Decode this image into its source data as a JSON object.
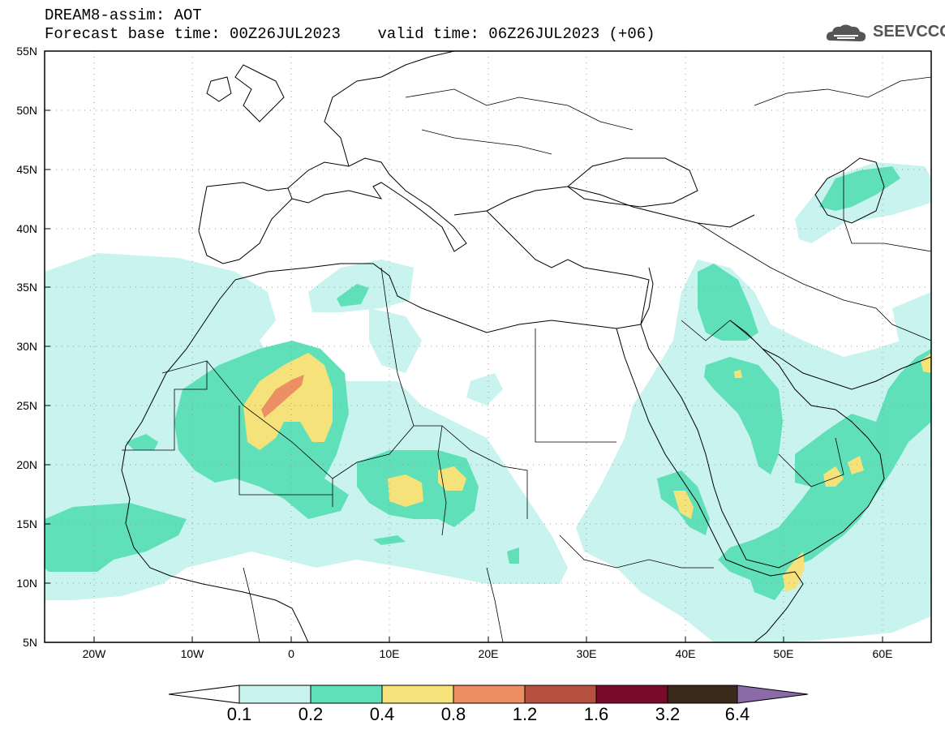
{
  "header": {
    "title_line1": "DREAM8-assim: AOT",
    "title_line2": "Forecast base time: 00Z26JUL2023    valid time: 06Z26JUL2023 (+06)",
    "logo_text": "SEEVCCC"
  },
  "axes": {
    "lat_labels": [
      "55N",
      "50N",
      "45N",
      "40N",
      "35N",
      "30N",
      "25N",
      "20N",
      "15N",
      "10N",
      "5N"
    ],
    "lon_labels": [
      "20W",
      "10W",
      "0",
      "10E",
      "20E",
      "30E",
      "40E",
      "50E",
      "60E"
    ]
  },
  "legend": {
    "labels": [
      "0.1",
      "0.2",
      "0.4",
      "0.8",
      "1.2",
      "1.6",
      "3.2",
      "6.4"
    ],
    "colors": [
      "#c8f3ee",
      "#5fe0b9",
      "#f6e27a",
      "#ec8f62",
      "#b8503f",
      "#7a0a2a",
      "#3a2a1c",
      "#8b6aa8"
    ]
  },
  "colors": {
    "c01": "#c8f3ee",
    "c02": "#5fe0b9",
    "c04": "#f6e27a",
    "c08": "#ec8f62"
  }
}
